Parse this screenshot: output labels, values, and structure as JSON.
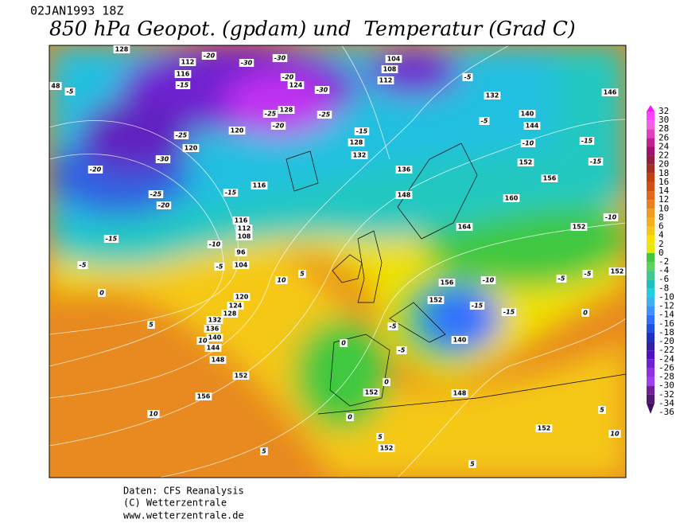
{
  "header": {
    "date": "02JAN1993 18Z",
    "title": "850 hPa Geopot. (gpdam) und  Temperatur (Grad C)"
  },
  "footer": {
    "source": "Daten: CFS Reanalysis",
    "copyright": "(C) Wetterzentrale",
    "url": "www.wetterzentrale.de"
  },
  "colorbar": {
    "levels": [
      32,
      30,
      28,
      26,
      24,
      22,
      20,
      18,
      16,
      14,
      12,
      10,
      8,
      6,
      4,
      2,
      0,
      -2,
      -4,
      -6,
      -8,
      -10,
      -12,
      -14,
      -16,
      -18,
      -20,
      -22,
      -24,
      -26,
      -28,
      -30,
      -32,
      -34,
      -36
    ],
    "colors": [
      "#ff10ff",
      "#ff40ff",
      "#f060e0",
      "#e040c0",
      "#c02090",
      "#a01070",
      "#902040",
      "#a03020",
      "#c04010",
      "#d05010",
      "#e06818",
      "#e88020",
      "#f09a20",
      "#f5b020",
      "#f8c818",
      "#f8e000",
      "#e8e800",
      "#40c840",
      "#60d060",
      "#40c890",
      "#20c0c0",
      "#20d0e0",
      "#40b0f0",
      "#4090ff",
      "#3070ff",
      "#2050e0",
      "#2030c0",
      "#3020a0",
      "#5010c0",
      "#7020d0",
      "#9030e0",
      "#a040f0",
      "#702090",
      "#501870",
      "#401060"
    ]
  },
  "map": {
    "geopotential_labels": [
      128,
      112,
      116,
      104,
      108,
      112,
      124,
      128,
      120,
      120,
      116,
      116,
      112,
      108,
      96,
      104,
      120,
      124,
      128,
      132,
      136,
      140,
      144,
      148,
      152,
      156,
      152,
      148,
      152,
      152,
      164,
      160,
      156,
      152,
      144,
      140,
      132,
      146,
      152,
      152,
      156,
      152,
      140,
      136,
      148,
      128,
      132,
      48
    ],
    "temperature_labels": [
      -5,
      -15,
      -25,
      -30,
      -20,
      -25,
      -20,
      -15,
      -10,
      -5,
      -5,
      -15,
      0,
      5,
      10,
      10,
      5,
      10,
      5,
      0,
      -5,
      -5,
      0,
      0,
      5,
      5,
      5,
      10,
      -10,
      -15,
      -15,
      -10,
      -15,
      -15,
      -10,
      -5,
      -5,
      0,
      -5,
      -5,
      -15,
      -20,
      -25,
      -30,
      -25,
      -20,
      -30,
      -30,
      -20
    ]
  }
}
